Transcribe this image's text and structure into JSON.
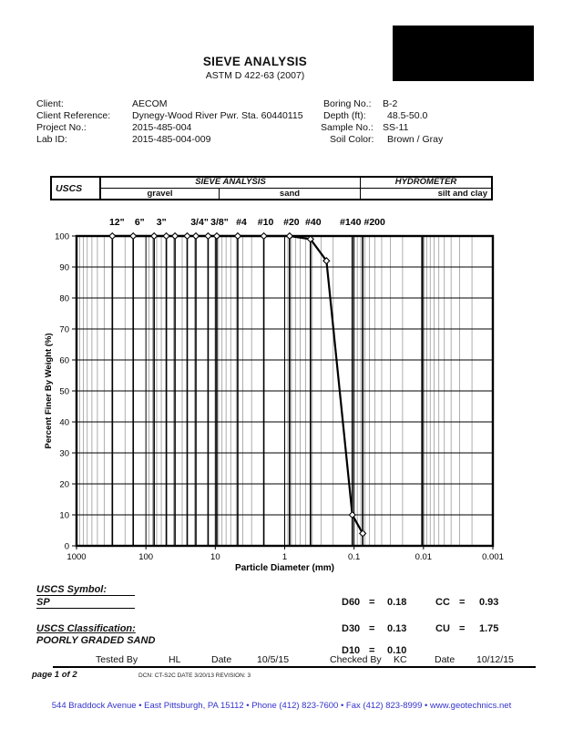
{
  "header": {
    "title": "SIEVE ANALYSIS",
    "subtitle": "ASTM D 422-63 (2007)"
  },
  "logo": {
    "style": "redacted-black-box",
    "color": "#000000"
  },
  "info": {
    "left": [
      {
        "label": "Client:",
        "value": "AECOM"
      },
      {
        "label": "Client Reference:",
        "value": "Dynegy-Wood River Pwr. Sta. 60440115"
      },
      {
        "label": "Project No.:",
        "value": "2015-485-004"
      },
      {
        "label": "Lab ID:",
        "value": "2015-485-004-009"
      }
    ],
    "right": [
      {
        "label": "Boring No.:",
        "value": "B-2"
      },
      {
        "label": "Depth (ft):",
        "value": "48.5-50.0"
      },
      {
        "label": "Sample No.:",
        "value": "SS-11"
      },
      {
        "label": "Soil Color:",
        "value": "Brown / Gray"
      }
    ]
  },
  "class_table": {
    "col1": "USCS",
    "top_left": "SIEVE ANALYSIS",
    "top_right": "HYDROMETER",
    "gravel": "gravel",
    "sand": "sand",
    "silt_clay": "silt and clay"
  },
  "chart_data": {
    "type": "line",
    "title": "",
    "xlabel": "Particle Diameter (mm)",
    "ylabel": "Percent Finer By Weight (%)",
    "x_scale": "log",
    "xlim": [
      1000,
      0.001
    ],
    "ylim": [
      0,
      100
    ],
    "x_ticks": [
      "1000",
      "100",
      "10",
      "1",
      "0.1",
      "0.01",
      "0.001"
    ],
    "y_ticks": [
      100,
      90,
      80,
      70,
      60,
      50,
      40,
      30,
      20,
      10,
      0
    ],
    "grid": "on",
    "legend": "none",
    "sieve_header": [
      {
        "label": "12\"",
        "d_mm": 304.8,
        "dx": 5
      },
      {
        "label": "6\"",
        "d_mm": 152.4,
        "dx": 7
      },
      {
        "label": "3\"",
        "d_mm": 76.2,
        "dx": 8
      },
      {
        "label": "3/4\"",
        "d_mm": 19.05,
        "dx": 4
      },
      {
        "label": "3/8\"",
        "d_mm": 9.525,
        "dx": 3
      },
      {
        "label": "#4",
        "d_mm": 4.75,
        "dx": 4
      },
      {
        "label": "#10",
        "d_mm": 2.0,
        "dx": 2
      },
      {
        "label": "#20",
        "d_mm": 0.85,
        "dx": 2
      },
      {
        "label": "#40",
        "d_mm": 0.425,
        "dx": 3
      },
      {
        "label": "#140",
        "d_mm": 0.106,
        "dx": -2
      },
      {
        "label": "#200",
        "d_mm": 0.075,
        "dx": 13
      }
    ],
    "sieve_gridlines_mm": [
      304.8,
      152.4,
      76.2,
      50.8,
      38.1,
      25.4,
      19.05,
      12.7,
      9.525,
      4.75,
      2.0,
      0.85,
      0.425,
      0.106,
      0.075,
      0.0105
    ],
    "series": [
      {
        "points": [
          {
            "sieve": "12\"",
            "d_mm": 304.8,
            "percent_finer": 100
          },
          {
            "sieve": "6\"",
            "d_mm": 152.4,
            "percent_finer": 100
          },
          {
            "sieve": "3\"",
            "d_mm": 76.2,
            "percent_finer": 100
          },
          {
            "sieve": "2\"",
            "d_mm": 50.8,
            "percent_finer": 100
          },
          {
            "sieve": "1.5\"",
            "d_mm": 38.1,
            "percent_finer": 100
          },
          {
            "sieve": "1\"",
            "d_mm": 25.4,
            "percent_finer": 100
          },
          {
            "sieve": "3/4\"",
            "d_mm": 19.05,
            "percent_finer": 100
          },
          {
            "sieve": "1/2\"",
            "d_mm": 12.7,
            "percent_finer": 100
          },
          {
            "sieve": "3/8\"",
            "d_mm": 9.525,
            "percent_finer": 100
          },
          {
            "sieve": "#4",
            "d_mm": 4.75,
            "percent_finer": 100
          },
          {
            "sieve": "#10",
            "d_mm": 2.0,
            "percent_finer": 100
          },
          {
            "sieve": "#20",
            "d_mm": 0.85,
            "percent_finer": 100
          },
          {
            "sieve": "#40",
            "d_mm": 0.425,
            "percent_finer": 99
          },
          {
            "sieve": "#60",
            "d_mm": 0.25,
            "percent_finer": 92
          },
          {
            "sieve": "#140",
            "d_mm": 0.106,
            "percent_finer": 10
          },
          {
            "sieve": "#200",
            "d_mm": 0.075,
            "percent_finer": 4
          }
        ]
      }
    ]
  },
  "results": {
    "uscs_symbol_label": "USCS Symbol:",
    "uscs_symbol": "SP",
    "uscs_classification_label": "USCS Classification:",
    "uscs_classification": "POORLY GRADED SAND",
    "d60": {
      "name": "D60",
      "eq": "=",
      "value": "0.18"
    },
    "d30": {
      "name": "D30",
      "eq": "=",
      "value": "0.13"
    },
    "d10": {
      "name": "D10",
      "eq": "=",
      "value": "0.10"
    },
    "cc": {
      "name": "CC",
      "eq": "=",
      "value": "0.93"
    },
    "cu": {
      "name": "CU",
      "eq": "=",
      "value": "1.75"
    }
  },
  "signoff": {
    "tested_by_label": "Tested By",
    "tested_by_value": "HL",
    "tested_date_label": "Date",
    "tested_date_value": "10/5/15",
    "checked_by_label": "Checked By",
    "checked_by_value": "KC",
    "checked_date_label": "Date",
    "checked_date_value": "10/12/15"
  },
  "footer": {
    "page_label": "page 1 of 2",
    "dcn": "DCN: CT-S2C DATE 3/20/13   REVISION: 3",
    "address": "544 Braddock Avenue  •  East Pittsburgh, PA  15112  •  Phone  (412) 823-7600  •  Fax (412) 823-8999  •  www.geotechnics.net"
  },
  "colors": {
    "address_blue": "#3333cc",
    "logo_box": "#000000"
  }
}
